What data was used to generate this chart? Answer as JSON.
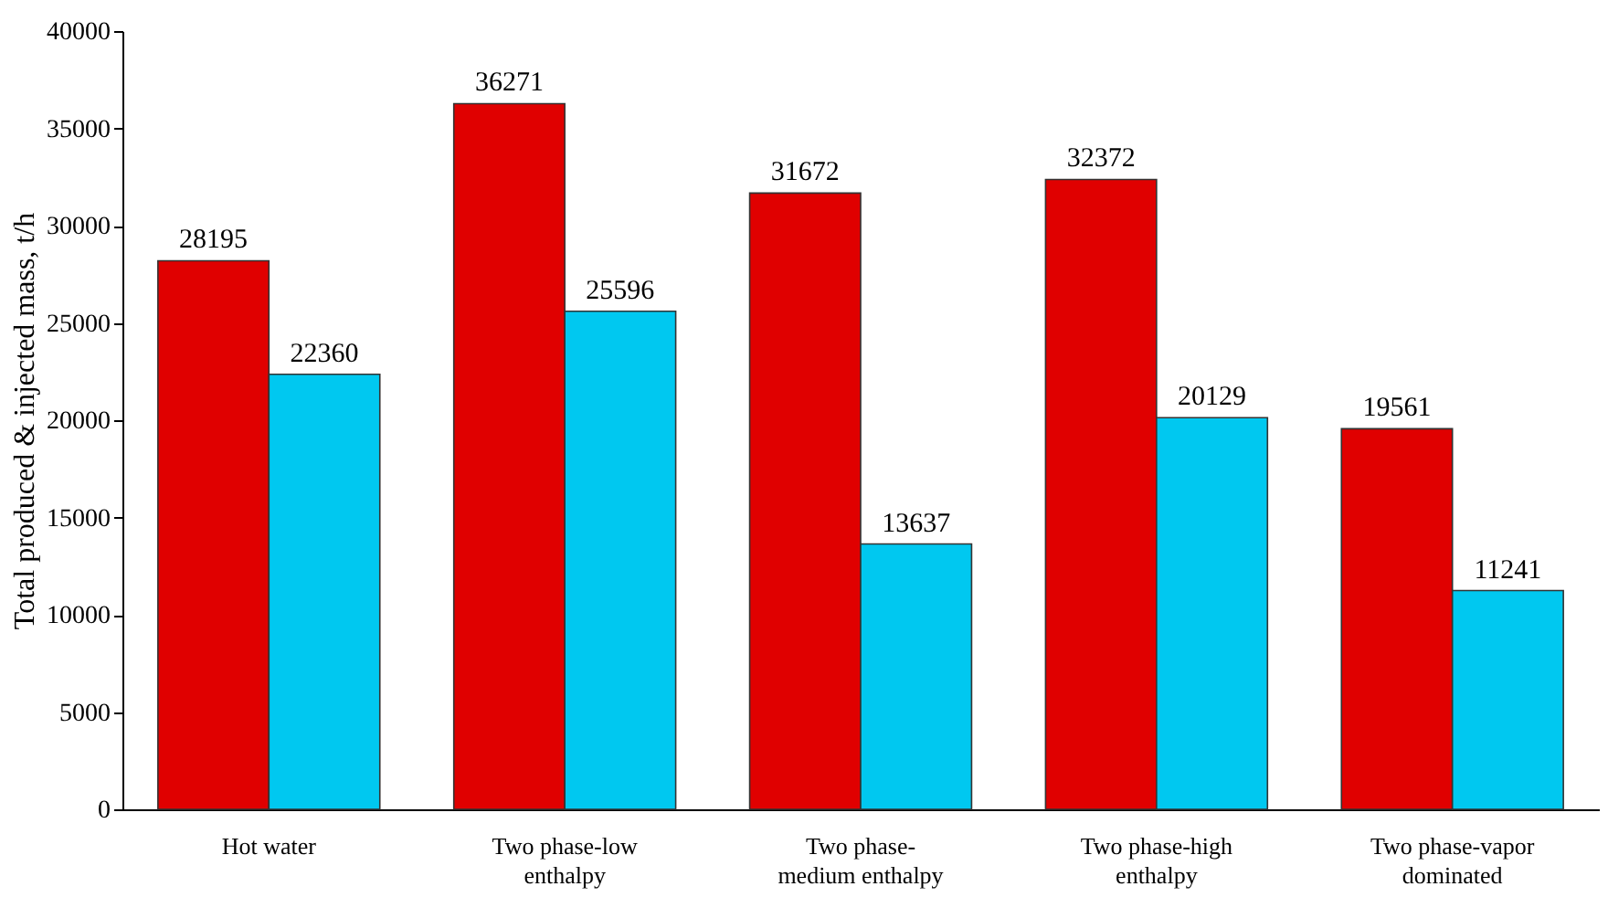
{
  "chart_data": {
    "type": "bar",
    "ylabel": "Total produced & injected mass, t/h",
    "categories": [
      "Hot water",
      "Two phase-low enthalpy",
      "Two phase-medium enthalpy",
      "Two phase-high enthalpy",
      "Two phase-vapor dominated"
    ],
    "series": [
      {
        "color": "#e00000",
        "values": [
          28195,
          36271,
          31672,
          32372,
          19561
        ]
      },
      {
        "color": "#00c8f0",
        "values": [
          22360,
          25596,
          13637,
          20129,
          11241
        ]
      }
    ],
    "ylim": [
      0,
      40000
    ],
    "yticks": [
      0,
      5000,
      10000,
      15000,
      20000,
      25000,
      30000,
      35000,
      40000
    ],
    "data_labels": true,
    "grid": false,
    "legend": false
  }
}
